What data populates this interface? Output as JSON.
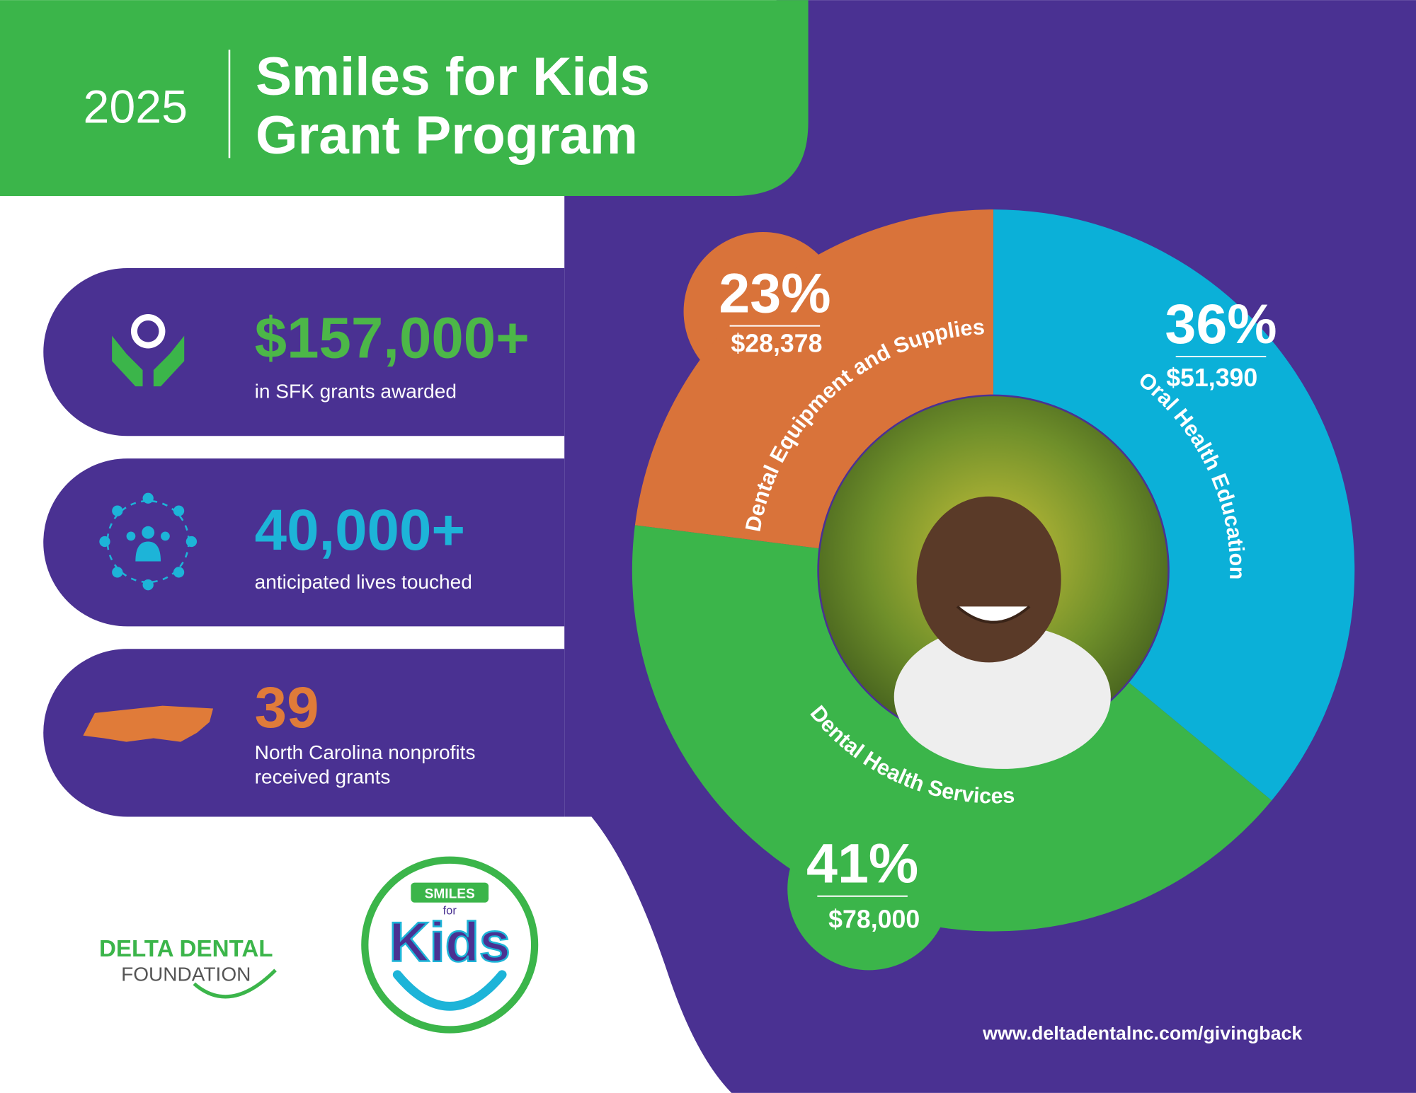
{
  "header": {
    "year": "2025",
    "title": [
      "Smiles for Kids",
      "Grant Program"
    ]
  },
  "stats": [
    {
      "value": "$157,000+",
      "label": [
        "in SFK grants awarded"
      ]
    },
    {
      "value": "40,000+",
      "label": [
        "anticipated lives touched"
      ]
    },
    {
      "value": "39",
      "label": [
        "North Carolina nonprofits",
        "received grants"
      ]
    }
  ],
  "chart_data": {
    "type": "donut",
    "categories": [
      "Dental Equipment and Supplies",
      "Oral Health Education",
      "Dental Health Services"
    ],
    "values": [
      23,
      36,
      41
    ],
    "value_labels": [
      "23%",
      "36%",
      "41%"
    ],
    "amounts": [
      "$28,378",
      "$51,390",
      "$78,000"
    ],
    "colors": [
      "#d9733a",
      "#0bb0d8",
      "#3bb54a"
    ]
  },
  "logos": {
    "foundation": [
      "DELTA DENTAL",
      "FOUNDATION"
    ],
    "program": [
      "SMILES",
      "for",
      "Kids"
    ]
  },
  "footer": {
    "url": "www.deltadentalnc.com/givingback"
  }
}
